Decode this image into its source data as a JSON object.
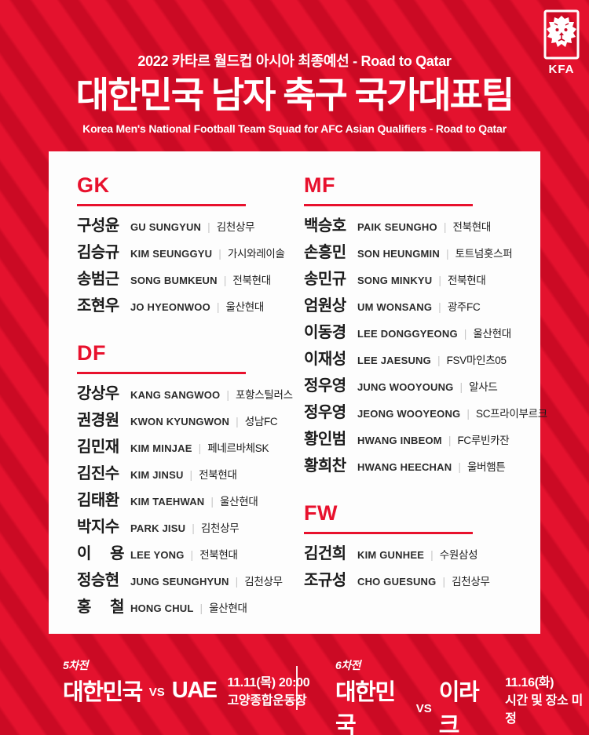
{
  "header": {
    "tournament": "2022 카타르 월드컵 아시아 최종예선 - Road to Qatar",
    "title": "대한민국 남자 축구 국가대표팀",
    "subtitle": "Korea Men's National Football Team Squad for AFC Asian Qualifiers - Road to Qatar",
    "logo_text": "KFA"
  },
  "colors": {
    "kfa_red": "#e8112d",
    "background_stripe_light": "#e4122e",
    "background_stripe_dark": "#cb0a24",
    "card_background": "#fdfdfd",
    "text_dark": "#1b1b1b",
    "separator_gray": "#c7c7c7",
    "white": "#ffffff"
  },
  "squad": {
    "sections": [
      {
        "id": "gk",
        "label": "GK",
        "column": "left",
        "players": [
          {
            "kr": "구성윤",
            "en": "GU SUNGYUN",
            "club": "김천상무"
          },
          {
            "kr": "김승규",
            "en": "KIM SEUNGGYU",
            "club": "가시와레이솔"
          },
          {
            "kr": "송범근",
            "en": "SONG BUMKEUN",
            "club": "전북현대"
          },
          {
            "kr": "조현우",
            "en": "JO HYEONWOO",
            "club": "울산현대"
          }
        ]
      },
      {
        "id": "df",
        "label": "DF",
        "column": "left",
        "players": [
          {
            "kr": "강상우",
            "en": "KANG SANGWOO",
            "club": "포항스틸러스"
          },
          {
            "kr": "권경원",
            "en": "KWON KYUNGWON",
            "club": "성남FC"
          },
          {
            "kr": "김민재",
            "en": "KIM MINJAE",
            "club": "페네르바체SK"
          },
          {
            "kr": "김진수",
            "en": "KIM JINSU",
            "club": "전북현대"
          },
          {
            "kr": "김태환",
            "en": "KIM TAEHWAN",
            "club": "울산현대"
          },
          {
            "kr": "박지수",
            "en": "PARK JISU",
            "club": "김천상무"
          },
          {
            "kr": "이 용",
            "en": "LEE YONG",
            "club": "전북현대"
          },
          {
            "kr": "정승현",
            "en": "JUNG SEUNGHYUN",
            "club": "김천상무"
          },
          {
            "kr": "홍 철",
            "en": "HONG CHUL",
            "club": "울산현대"
          }
        ]
      },
      {
        "id": "mf",
        "label": "MF",
        "column": "right",
        "players": [
          {
            "kr": "백승호",
            "en": "PAIK SEUNGHO",
            "club": "전북현대"
          },
          {
            "kr": "손흥민",
            "en": "SON HEUNGMIN",
            "club": "토트넘홋스퍼"
          },
          {
            "kr": "송민규",
            "en": "SONG MINKYU",
            "club": "전북현대"
          },
          {
            "kr": "엄원상",
            "en": "UM WONSANG",
            "club": "광주FC"
          },
          {
            "kr": "이동경",
            "en": "LEE DONGGYEONG",
            "club": "울산현대"
          },
          {
            "kr": "이재성",
            "en": "LEE JAESUNG",
            "club": "FSV마인츠05"
          },
          {
            "kr": "정우영",
            "en": "JUNG WOOYOUNG",
            "club": "알사드"
          },
          {
            "kr": "정우영",
            "en": "JEONG WOOYEONG",
            "club": "SC프라이부르크"
          },
          {
            "kr": "황인범",
            "en": "HWANG INBEOM",
            "club": "FC루빈카잔"
          },
          {
            "kr": "황희찬",
            "en": "HWANG HEECHAN",
            "club": "울버햄튼"
          }
        ]
      },
      {
        "id": "fw",
        "label": "FW",
        "column": "right",
        "players": [
          {
            "kr": "김건희",
            "en": "KIM GUNHEE",
            "club": "수원삼성"
          },
          {
            "kr": "조규성",
            "en": "CHO GUESUNG",
            "club": "김천상무"
          }
        ]
      }
    ]
  },
  "footer": {
    "matches": [
      {
        "round": "5차전",
        "home": "대한민국",
        "vs": "VS",
        "away": "UAE",
        "details": [
          "11.11(목) 20:00",
          "고양종합운동장"
        ]
      },
      {
        "round": "6차전",
        "home": "대한민국",
        "vs": "VS",
        "away": "이라크",
        "details": [
          "11.16(화)",
          "시간 및 장소 미정"
        ]
      }
    ]
  }
}
